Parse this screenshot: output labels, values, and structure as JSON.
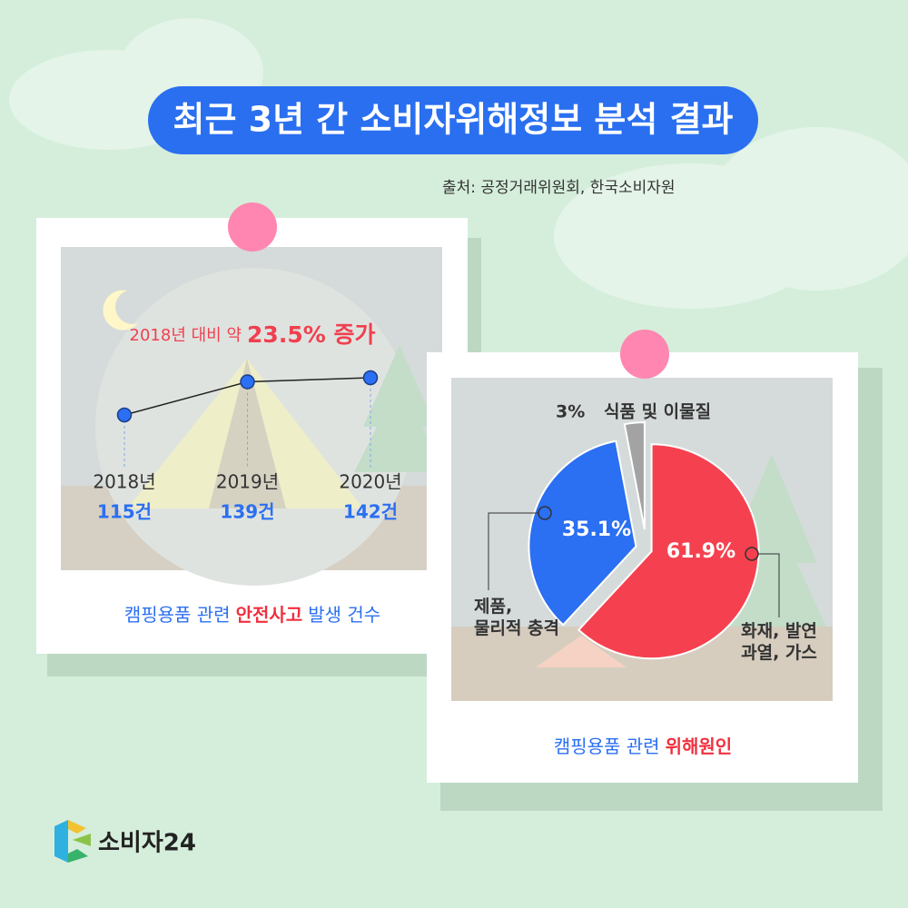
{
  "title": "최근 3년 간 소비자위해정보 분석 결과",
  "source": "출처: 공정거래위원회, 한국소비자원",
  "logo": "소비자24",
  "chart_data": [
    {
      "type": "line",
      "annotation": [
        "2018년 대비 약",
        "23.5% 증가"
      ],
      "categories": [
        "2018년",
        "2019년",
        "2020년"
      ],
      "values": [
        115,
        139,
        142
      ],
      "value_labels": [
        "115건",
        "139건",
        "142건"
      ],
      "color": "#2b6ff2",
      "caption": [
        "캠핑용품 관련",
        "안전사고",
        "발생 건수"
      ]
    },
    {
      "type": "pie",
      "categories": [
        "화재, 발연\n과열, 가스",
        "제품,\n물리적 충격",
        "식품 및 이물질"
      ],
      "values": [
        61.9,
        35.1,
        3
      ],
      "value_labels": [
        "61.9%",
        "35.1%",
        "3%"
      ],
      "colors": [
        "#f5414f",
        "#2b6ff2",
        "#a3a3a3"
      ],
      "caption": [
        "캠핑용품 관련",
        "위해원인"
      ]
    }
  ]
}
